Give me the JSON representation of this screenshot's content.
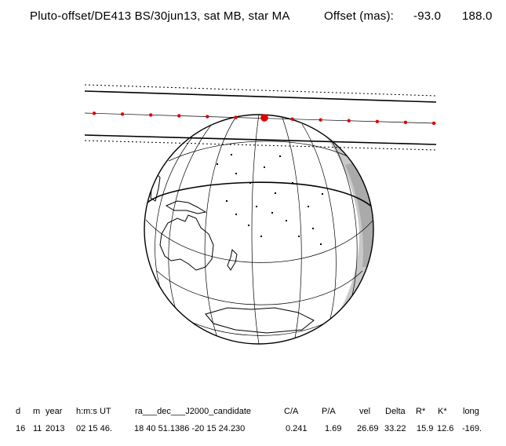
{
  "title": {
    "main": "Pluto-offset/DE413 BS/30jun13, sat MB, star MA",
    "offset_label": "Offset (mas):",
    "offset_x": "-93.0",
    "offset_y": "188.0"
  },
  "table": {
    "headers": [
      "d",
      "m",
      "year",
      "h:m:s UT",
      "ra___dec___J2000_candidate",
      "C/A",
      "P/A",
      "vel",
      "Delta",
      "R*",
      "K*",
      "long"
    ],
    "values": [
      "16",
      "11",
      "2013",
      "02 15 46.",
      "18 40 51.1386 -20 15 24.230",
      "0.241",
      "1.69",
      "26.69",
      "33.22",
      "15.9",
      "12.6",
      "-169."
    ]
  },
  "colors": {
    "track": "#e00000",
    "night_shade": "#c8c8c8",
    "twilight_shade": "#e4e4e4",
    "lines": "#000000"
  }
}
